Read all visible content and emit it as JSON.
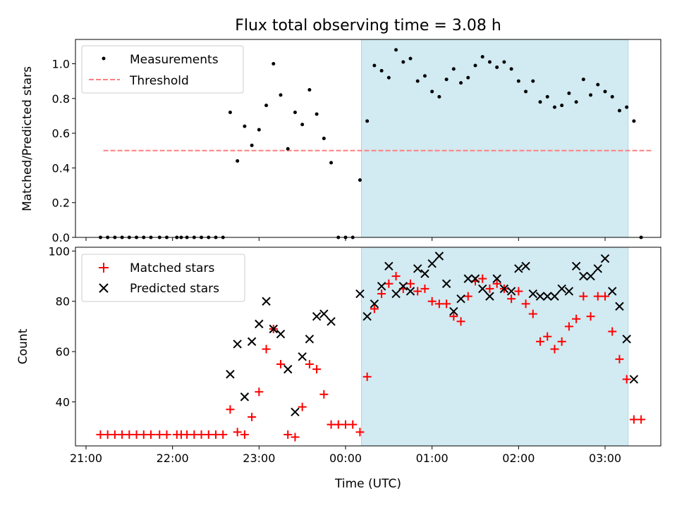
{
  "title": "Flux total observing time = 3.08 h",
  "xlabel": "Time (UTC)",
  "x_ticks": [
    "21:00",
    "22:00",
    "23:00",
    "00:00",
    "01:00",
    "02:00",
    "03:00"
  ],
  "shaded_region": {
    "start": "00:11",
    "end": "03:16",
    "color": "#add8e6"
  },
  "colors": {
    "measurement": "#000000",
    "threshold": "#ff7f7f",
    "matched": "#ff0000",
    "predicted": "#000000"
  },
  "chart_data": [
    {
      "type": "scatter",
      "ylabel": "Matched/Predicted stars",
      "ylim": [
        0,
        1.14
      ],
      "yticks": [
        "0.0",
        "0.2",
        "0.4",
        "0.6",
        "0.8",
        "1.0"
      ],
      "legend": "top-left",
      "threshold": {
        "name": "Threshold",
        "y": 0.5,
        "x_range": [
          "21:12",
          "03:32"
        ]
      },
      "series": [
        {
          "name": "Measurements",
          "points": [
            [
              "21:10",
              0
            ],
            [
              "21:15",
              0
            ],
            [
              "21:20",
              0
            ],
            [
              "21:25",
              0
            ],
            [
              "21:30",
              0
            ],
            [
              "21:35",
              0
            ],
            [
              "21:40",
              0
            ],
            [
              "21:45",
              0
            ],
            [
              "21:51",
              0
            ],
            [
              "21:56",
              0
            ],
            [
              "22:03",
              0
            ],
            [
              "22:06",
              0
            ],
            [
              "22:10",
              0
            ],
            [
              "22:15",
              0
            ],
            [
              "22:20",
              0
            ],
            [
              "22:25",
              0
            ],
            [
              "22:30",
              0
            ],
            [
              "22:35",
              0
            ],
            [
              "22:40",
              0.72
            ],
            [
              "22:45",
              0.44
            ],
            [
              "22:50",
              0.64
            ],
            [
              "22:55",
              0.53
            ],
            [
              "23:00",
              0.62
            ],
            [
              "23:05",
              0.76
            ],
            [
              "23:10",
              1.0
            ],
            [
              "23:15",
              0.82
            ],
            [
              "23:20",
              0.51
            ],
            [
              "23:25",
              0.72
            ],
            [
              "23:30",
              0.65
            ],
            [
              "23:35",
              0.85
            ],
            [
              "23:40",
              0.71
            ],
            [
              "23:45",
              0.57
            ],
            [
              "23:50",
              0.43
            ],
            [
              "23:55",
              0
            ],
            [
              "00:00",
              0
            ],
            [
              "00:05",
              0
            ],
            [
              "00:10",
              0.33
            ],
            [
              "00:15",
              0.67
            ],
            [
              "00:20",
              0.99
            ],
            [
              "00:25",
              0.96
            ],
            [
              "00:30",
              0.92
            ],
            [
              "00:35",
              1.08
            ],
            [
              "00:40",
              1.01
            ],
            [
              "00:45",
              1.03
            ],
            [
              "00:50",
              0.9
            ],
            [
              "00:55",
              0.93
            ],
            [
              "01:00",
              0.84
            ],
            [
              "01:05",
              0.81
            ],
            [
              "01:10",
              0.91
            ],
            [
              "01:15",
              0.97
            ],
            [
              "01:20",
              0.89
            ],
            [
              "01:25",
              0.92
            ],
            [
              "01:30",
              0.99
            ],
            [
              "01:35",
              1.04
            ],
            [
              "01:40",
              1.01
            ],
            [
              "01:45",
              0.98
            ],
            [
              "01:50",
              1.01
            ],
            [
              "01:55",
              0.97
            ],
            [
              "02:00",
              0.9
            ],
            [
              "02:05",
              0.84
            ],
            [
              "02:10",
              0.9
            ],
            [
              "02:15",
              0.78
            ],
            [
              "02:20",
              0.81
            ],
            [
              "02:25",
              0.75
            ],
            [
              "02:30",
              0.76
            ],
            [
              "02:35",
              0.83
            ],
            [
              "02:40",
              0.78
            ],
            [
              "02:45",
              0.91
            ],
            [
              "02:50",
              0.82
            ],
            [
              "02:55",
              0.88
            ],
            [
              "03:00",
              0.84
            ],
            [
              "03:05",
              0.81
            ],
            [
              "03:10",
              0.73
            ],
            [
              "03:15",
              0.75
            ],
            [
              "03:20",
              0.67
            ],
            [
              "03:25",
              0
            ]
          ]
        }
      ]
    },
    {
      "type": "scatter",
      "ylabel": "Count",
      "ylim": [
        22.5,
        101.5
      ],
      "yticks": [
        "40",
        "60",
        "80",
        "100"
      ],
      "legend": "top-left",
      "series": [
        {
          "name": "Matched stars",
          "marker": "plus",
          "points": [
            [
              "21:10",
              27
            ],
            [
              "21:15",
              27
            ],
            [
              "21:20",
              27
            ],
            [
              "21:25",
              27
            ],
            [
              "21:30",
              27
            ],
            [
              "21:35",
              27
            ],
            [
              "21:40",
              27
            ],
            [
              "21:45",
              27
            ],
            [
              "21:51",
              27
            ],
            [
              "21:56",
              27
            ],
            [
              "22:03",
              27
            ],
            [
              "22:06",
              27
            ],
            [
              "22:10",
              27
            ],
            [
              "22:15",
              27
            ],
            [
              "22:20",
              27
            ],
            [
              "22:25",
              27
            ],
            [
              "22:30",
              27
            ],
            [
              "22:35",
              27
            ],
            [
              "22:40",
              37
            ],
            [
              "22:45",
              28
            ],
            [
              "22:50",
              27
            ],
            [
              "22:55",
              34
            ],
            [
              "23:00",
              44
            ],
            [
              "23:05",
              61
            ],
            [
              "23:10",
              69
            ],
            [
              "23:15",
              55
            ],
            [
              "23:20",
              27
            ],
            [
              "23:25",
              26
            ],
            [
              "23:30",
              38
            ],
            [
              "23:35",
              55
            ],
            [
              "23:40",
              53
            ],
            [
              "23:45",
              43
            ],
            [
              "23:50",
              31
            ],
            [
              "23:55",
              31
            ],
            [
              "00:00",
              31
            ],
            [
              "00:05",
              31
            ],
            [
              "00:10",
              28
            ],
            [
              "00:15",
              50
            ],
            [
              "00:20",
              77
            ],
            [
              "00:25",
              83
            ],
            [
              "00:30",
              87
            ],
            [
              "00:35",
              90
            ],
            [
              "00:40",
              85
            ],
            [
              "00:45",
              87
            ],
            [
              "00:50",
              84
            ],
            [
              "00:55",
              85
            ],
            [
              "01:00",
              80
            ],
            [
              "01:05",
              79
            ],
            [
              "01:10",
              79
            ],
            [
              "01:15",
              74
            ],
            [
              "01:20",
              72
            ],
            [
              "01:25",
              82
            ],
            [
              "01:30",
              88
            ],
            [
              "01:35",
              89
            ],
            [
              "01:40",
              85
            ],
            [
              "01:45",
              87
            ],
            [
              "01:50",
              85
            ],
            [
              "01:55",
              81
            ],
            [
              "02:00",
              84
            ],
            [
              "02:05",
              79
            ],
            [
              "02:10",
              75
            ],
            [
              "02:15",
              64
            ],
            [
              "02:20",
              66
            ],
            [
              "02:25",
              61
            ],
            [
              "02:30",
              64
            ],
            [
              "02:35",
              70
            ],
            [
              "02:40",
              73
            ],
            [
              "02:45",
              82
            ],
            [
              "02:50",
              74
            ],
            [
              "02:55",
              82
            ],
            [
              "03:00",
              82
            ],
            [
              "03:05",
              68
            ],
            [
              "03:10",
              57
            ],
            [
              "03:15",
              49
            ],
            [
              "03:20",
              33
            ],
            [
              "03:25",
              33
            ]
          ]
        },
        {
          "name": "Predicted stars",
          "marker": "x",
          "points": [
            [
              "22:40",
              51
            ],
            [
              "22:45",
              63
            ],
            [
              "22:50",
              42
            ],
            [
              "22:55",
              64
            ],
            [
              "23:00",
              71
            ],
            [
              "23:05",
              80
            ],
            [
              "23:10",
              69
            ],
            [
              "23:15",
              67
            ],
            [
              "23:20",
              53
            ],
            [
              "23:25",
              36
            ],
            [
              "23:30",
              58
            ],
            [
              "23:35",
              65
            ],
            [
              "23:40",
              74
            ],
            [
              "23:45",
              75
            ],
            [
              "23:50",
              72
            ],
            [
              "00:10",
              83
            ],
            [
              "00:15",
              74
            ],
            [
              "00:20",
              79
            ],
            [
              "00:25",
              86
            ],
            [
              "00:30",
              94
            ],
            [
              "00:35",
              83
            ],
            [
              "00:40",
              86
            ],
            [
              "00:45",
              84
            ],
            [
              "00:50",
              93
            ],
            [
              "00:55",
              91
            ],
            [
              "01:00",
              95
            ],
            [
              "01:05",
              98
            ],
            [
              "01:10",
              87
            ],
            [
              "01:15",
              76
            ],
            [
              "01:20",
              81
            ],
            [
              "01:25",
              89
            ],
            [
              "01:30",
              89
            ],
            [
              "01:35",
              85
            ],
            [
              "01:40",
              82
            ],
            [
              "01:45",
              89
            ],
            [
              "01:50",
              85
            ],
            [
              "01:55",
              84
            ],
            [
              "02:00",
              93
            ],
            [
              "02:05",
              94
            ],
            [
              "02:10",
              83
            ],
            [
              "02:15",
              82
            ],
            [
              "02:20",
              82
            ],
            [
              "02:25",
              82
            ],
            [
              "02:30",
              85
            ],
            [
              "02:35",
              84
            ],
            [
              "02:40",
              94
            ],
            [
              "02:45",
              90
            ],
            [
              "02:50",
              90
            ],
            [
              "02:55",
              93
            ],
            [
              "03:00",
              97
            ],
            [
              "03:05",
              84
            ],
            [
              "03:10",
              78
            ],
            [
              "03:15",
              65
            ],
            [
              "03:20",
              49
            ]
          ]
        }
      ]
    }
  ]
}
